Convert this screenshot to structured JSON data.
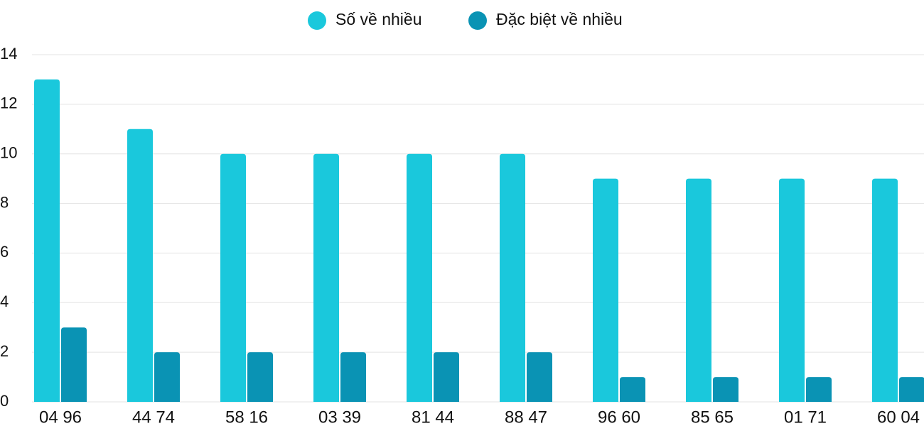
{
  "chart_data": {
    "type": "bar",
    "categories": [
      "04 96",
      "44 74",
      "58 16",
      "03 39",
      "81 44",
      "88 47",
      "96 60",
      "85 65",
      "01 71",
      "60 04"
    ],
    "series": [
      {
        "name": "Số về nhiều",
        "color": "#1ac8dc",
        "values": [
          13,
          11,
          10,
          10,
          10,
          10,
          9,
          9,
          9,
          9
        ]
      },
      {
        "name": "Đặc biệt về nhiều",
        "color": "#0a93b4",
        "values": [
          3,
          2,
          2,
          2,
          2,
          2,
          1,
          1,
          1,
          1
        ]
      }
    ],
    "ylim": [
      0,
      14
    ],
    "yticks": [
      0,
      2,
      4,
      6,
      8,
      10,
      12,
      14
    ],
    "grid": true,
    "legend": "top"
  }
}
